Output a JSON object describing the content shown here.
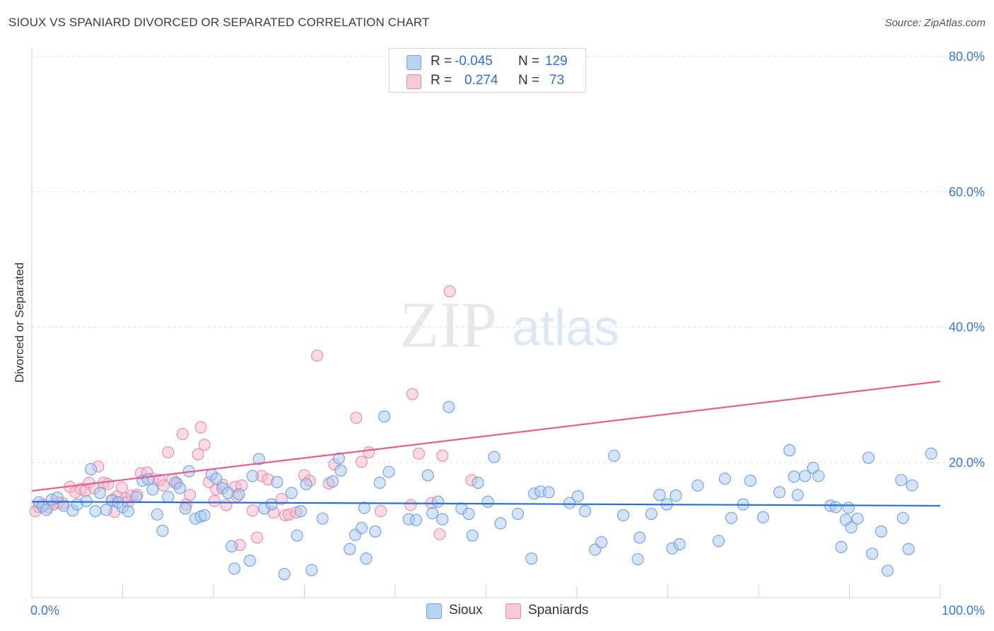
{
  "title": "SIOUX VS SPANIARD DIVORCED OR SEPARATED CORRELATION CHART",
  "source": "Source: ZipAtlas.com",
  "watermark": {
    "zip": "ZIP",
    "atlas": "atlas"
  },
  "legend": {
    "rows": [
      {
        "r_label": "R =",
        "r_value": "-0.045",
        "n_label": "N =",
        "n_value": "129"
      },
      {
        "r_label": "R =",
        "r_value": "0.274",
        "n_label": "N =",
        "n_value": "73"
      }
    ]
  },
  "bottom_legend": [
    "Sioux",
    "Spaniards"
  ],
  "colors": {
    "sioux_fill": "#a9c8f0",
    "sioux_stroke": "#6f9fdc",
    "sioux_line": "#2a6fd1",
    "spaniard_fill": "#f5b8cc",
    "spaniard_stroke": "#e78aa8",
    "spaniard_line": "#e2608d",
    "tick_text": "#3a78d0",
    "grid": "#dcdcdc"
  },
  "chart_data": {
    "type": "scatter",
    "title": "SIOUX VS SPANIARD DIVORCED OR SEPARATED CORRELATION CHART",
    "xlabel": "",
    "ylabel": "Divorced or Separated",
    "xlim": [
      0,
      100
    ],
    "ylim": [
      0,
      80
    ],
    "x_tick_labels": [
      "0.0%",
      "100.0%"
    ],
    "y_ticks": [
      20,
      40,
      60,
      80
    ],
    "y_tick_labels": [
      "20.0%",
      "40.0%",
      "60.0%",
      "80.0%"
    ],
    "series": [
      {
        "name": "Sioux",
        "r": -0.045,
        "n": 129,
        "trend": {
          "x": [
            0,
            100
          ],
          "y": [
            14.2,
            13.6
          ]
        },
        "points": [
          [
            0.8,
            14.1
          ],
          [
            1.2,
            13.5
          ],
          [
            1.6,
            13.0
          ],
          [
            2.2,
            14.5
          ],
          [
            2.8,
            14.8
          ],
          [
            3.5,
            13.6
          ],
          [
            4.5,
            12.9
          ],
          [
            5.0,
            13.8
          ],
          [
            6.0,
            14.3
          ],
          [
            6.5,
            19.0
          ],
          [
            7.0,
            12.8
          ],
          [
            7.5,
            15.5
          ],
          [
            8.2,
            13.0
          ],
          [
            8.8,
            14.4
          ],
          [
            9.5,
            14.1
          ],
          [
            10.0,
            13.4
          ],
          [
            10.6,
            12.8
          ],
          [
            11.5,
            14.9
          ],
          [
            12.2,
            17.3
          ],
          [
            12.8,
            17.5
          ],
          [
            13.3,
            16.0
          ],
          [
            13.8,
            12.3
          ],
          [
            14.4,
            9.9
          ],
          [
            15.0,
            14.9
          ],
          [
            15.8,
            17.0
          ],
          [
            16.3,
            16.2
          ],
          [
            16.9,
            13.2
          ],
          [
            17.3,
            18.7
          ],
          [
            18.0,
            11.7
          ],
          [
            18.6,
            12.0
          ],
          [
            19.0,
            12.2
          ],
          [
            19.8,
            18.2
          ],
          [
            20.3,
            17.6
          ],
          [
            21.0,
            16.2
          ],
          [
            21.6,
            15.5
          ],
          [
            22.0,
            7.6
          ],
          [
            22.3,
            4.3
          ],
          [
            22.8,
            15.3
          ],
          [
            24.0,
            5.5
          ],
          [
            24.3,
            18.0
          ],
          [
            25.0,
            20.5
          ],
          [
            25.6,
            13.2
          ],
          [
            26.4,
            13.8
          ],
          [
            27.0,
            17.1
          ],
          [
            27.8,
            3.5
          ],
          [
            28.6,
            15.5
          ],
          [
            29.2,
            9.2
          ],
          [
            29.6,
            12.8
          ],
          [
            30.2,
            16.8
          ],
          [
            30.8,
            4.1
          ],
          [
            32.0,
            11.7
          ],
          [
            33.1,
            17.2
          ],
          [
            33.8,
            20.6
          ],
          [
            34.0,
            18.8
          ],
          [
            35.0,
            7.2
          ],
          [
            35.6,
            9.3
          ],
          [
            36.3,
            10.3
          ],
          [
            36.6,
            13.3
          ],
          [
            36.8,
            5.8
          ],
          [
            37.8,
            9.8
          ],
          [
            38.3,
            17.0
          ],
          [
            38.8,
            26.8
          ],
          [
            39.3,
            18.6
          ],
          [
            41.5,
            11.6
          ],
          [
            42.3,
            11.5
          ],
          [
            43.6,
            18.1
          ],
          [
            44.1,
            12.5
          ],
          [
            44.7,
            14.2
          ],
          [
            45.2,
            11.6
          ],
          [
            45.9,
            28.2
          ],
          [
            47.3,
            13.2
          ],
          [
            48.1,
            12.4
          ],
          [
            48.5,
            9.2
          ],
          [
            49.1,
            17.0
          ],
          [
            50.2,
            14.2
          ],
          [
            50.9,
            20.8
          ],
          [
            51.6,
            11.0
          ],
          [
            53.5,
            12.4
          ],
          [
            55.0,
            5.8
          ],
          [
            55.3,
            15.4
          ],
          [
            56.0,
            15.7
          ],
          [
            56.9,
            15.6
          ],
          [
            59.2,
            14.0
          ],
          [
            60.1,
            15.0
          ],
          [
            60.9,
            12.8
          ],
          [
            62.0,
            7.1
          ],
          [
            62.7,
            8.2
          ],
          [
            64.1,
            21.0
          ],
          [
            65.1,
            12.2
          ],
          [
            66.7,
            5.7
          ],
          [
            66.9,
            8.9
          ],
          [
            68.2,
            12.4
          ],
          [
            69.1,
            15.2
          ],
          [
            69.9,
            13.8
          ],
          [
            70.5,
            7.3
          ],
          [
            70.9,
            15.1
          ],
          [
            71.3,
            7.9
          ],
          [
            73.3,
            16.6
          ],
          [
            75.6,
            8.4
          ],
          [
            76.3,
            17.6
          ],
          [
            77.0,
            11.8
          ],
          [
            78.3,
            13.8
          ],
          [
            79.1,
            17.3
          ],
          [
            80.5,
            11.9
          ],
          [
            82.3,
            15.6
          ],
          [
            83.4,
            21.8
          ],
          [
            83.9,
            17.9
          ],
          [
            84.3,
            15.2
          ],
          [
            85.1,
            18.0
          ],
          [
            86.0,
            19.2
          ],
          [
            86.6,
            18.0
          ],
          [
            87.9,
            13.6
          ],
          [
            88.5,
            13.4
          ],
          [
            89.1,
            7.5
          ],
          [
            89.6,
            11.5
          ],
          [
            89.9,
            13.3
          ],
          [
            90.2,
            10.4
          ],
          [
            90.9,
            11.7
          ],
          [
            92.1,
            20.7
          ],
          [
            92.5,
            6.5
          ],
          [
            93.5,
            9.8
          ],
          [
            94.2,
            4.0
          ],
          [
            95.7,
            17.4
          ],
          [
            95.9,
            11.8
          ],
          [
            96.5,
            7.2
          ],
          [
            96.9,
            16.6
          ],
          [
            99.0,
            21.3
          ]
        ]
      },
      {
        "name": "Spaniards",
        "r": 0.274,
        "n": 73,
        "trend": {
          "x": [
            0,
            100
          ],
          "y": [
            15.8,
            32.0
          ]
        },
        "points": [
          [
            0.4,
            12.8
          ],
          [
            0.8,
            13.4
          ],
          [
            1.2,
            13.8
          ],
          [
            1.8,
            13.4
          ],
          [
            2.4,
            13.8
          ],
          [
            2.9,
            14.1
          ],
          [
            3.4,
            14.0
          ],
          [
            4.2,
            16.4
          ],
          [
            4.8,
            15.6
          ],
          [
            5.4,
            16.1
          ],
          [
            5.9,
            15.8
          ],
          [
            6.3,
            17.0
          ],
          [
            6.9,
            16.2
          ],
          [
            7.3,
            19.4
          ],
          [
            7.9,
            17.0
          ],
          [
            8.4,
            16.8
          ],
          [
            8.9,
            14.5
          ],
          [
            9.1,
            12.7
          ],
          [
            9.4,
            15.0
          ],
          [
            9.9,
            16.3
          ],
          [
            10.3,
            14.7
          ],
          [
            10.6,
            14.2
          ],
          [
            11.0,
            15.1
          ],
          [
            11.6,
            15.2
          ],
          [
            12.0,
            18.4
          ],
          [
            12.7,
            18.5
          ],
          [
            13.3,
            17.6
          ],
          [
            14.1,
            17.4
          ],
          [
            14.5,
            16.6
          ],
          [
            15.0,
            21.5
          ],
          [
            15.5,
            17.5
          ],
          [
            16.0,
            16.9
          ],
          [
            16.6,
            24.2
          ],
          [
            17.0,
            13.8
          ],
          [
            17.4,
            15.2
          ],
          [
            18.3,
            21.2
          ],
          [
            18.6,
            25.2
          ],
          [
            19.0,
            22.6
          ],
          [
            19.5,
            17.1
          ],
          [
            20.1,
            14.3
          ],
          [
            20.3,
            16.0
          ],
          [
            21.0,
            16.7
          ],
          [
            21.4,
            13.7
          ],
          [
            22.4,
            16.4
          ],
          [
            22.6,
            15.0
          ],
          [
            22.9,
            7.8
          ],
          [
            23.1,
            16.6
          ],
          [
            24.3,
            12.9
          ],
          [
            24.8,
            8.9
          ],
          [
            25.3,
            18.0
          ],
          [
            26.0,
            17.5
          ],
          [
            26.6,
            12.6
          ],
          [
            27.5,
            14.6
          ],
          [
            27.9,
            12.2
          ],
          [
            28.3,
            12.3
          ],
          [
            29.1,
            12.6
          ],
          [
            30.0,
            18.1
          ],
          [
            30.6,
            17.3
          ],
          [
            31.4,
            35.8
          ],
          [
            32.7,
            16.9
          ],
          [
            33.3,
            19.7
          ],
          [
            35.7,
            26.6
          ],
          [
            36.3,
            20.1
          ],
          [
            37.1,
            21.5
          ],
          [
            38.4,
            12.8
          ],
          [
            41.7,
            13.7
          ],
          [
            41.9,
            30.1
          ],
          [
            42.6,
            21.3
          ],
          [
            44.0,
            14.0
          ],
          [
            44.9,
            9.4
          ],
          [
            45.2,
            21.0
          ],
          [
            46.0,
            45.3
          ],
          [
            48.4,
            17.4
          ]
        ]
      }
    ]
  }
}
